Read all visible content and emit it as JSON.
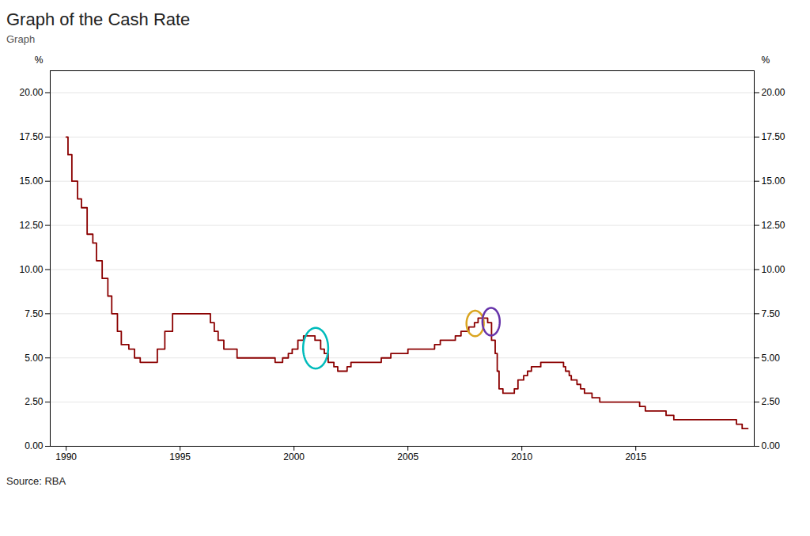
{
  "chart_data": {
    "type": "step",
    "title": "Graph of the Cash Rate",
    "subtitle": "Graph",
    "ylabel": "%",
    "y2label": "%",
    "caption": "Source: RBA",
    "color": "#8B0000",
    "grid": true,
    "xlim": [
      1989.3,
      2020.2
    ],
    "xticks": [
      1990,
      1995,
      2000,
      2005,
      2010,
      2015
    ],
    "ylim": [
      0.0,
      21.25
    ],
    "yticks": [
      {
        "value": 0.0,
        "label": "0.00"
      },
      {
        "value": 2.5,
        "label": "2.50"
      },
      {
        "value": 5.0,
        "label": "5.00"
      },
      {
        "value": 7.5,
        "label": "7.50"
      },
      {
        "value": 10.0,
        "label": "10.00"
      },
      {
        "value": 12.5,
        "label": "12.50"
      },
      {
        "value": 15.0,
        "label": "15.00"
      },
      {
        "value": 17.5,
        "label": "17.50"
      },
      {
        "value": 20.0,
        "label": "20.00"
      }
    ],
    "y2lim": [
      0.0,
      21.25
    ],
    "y2ticks": [
      {
        "value": 0.0,
        "label": "0.00"
      },
      {
        "value": 2.5,
        "label": "2.50"
      },
      {
        "value": 5.0,
        "label": "5.00"
      },
      {
        "value": 7.5,
        "label": "7.50"
      },
      {
        "value": 10.0,
        "label": "10.00"
      },
      {
        "value": 12.5,
        "label": "12.50"
      },
      {
        "value": 15.0,
        "label": "15.00"
      },
      {
        "value": 17.5,
        "label": "17.50"
      },
      {
        "value": 20.0,
        "label": "20.00"
      }
    ],
    "x": [
      1990.0,
      1990.08,
      1990.25,
      1990.5,
      1990.67,
      1990.92,
      1991.17,
      1991.33,
      1991.58,
      1991.83,
      1992.0,
      1992.25,
      1992.42,
      1992.75,
      1993.0,
      1993.25,
      1993.75,
      1994.0,
      1994.33,
      1994.67,
      1995.0,
      1996.17,
      1996.33,
      1996.5,
      1996.67,
      1996.92,
      1997.5,
      1998.0,
      1999.17,
      1999.5,
      1999.75,
      1999.92,
      2000.17,
      2000.42,
      2000.75,
      2000.92,
      2001.17,
      2001.33,
      2001.5,
      2001.75,
      2001.92,
      2002.33,
      2002.5,
      2002.83,
      2003.58,
      2003.83,
      2004.25,
      2004.67,
      2005.0,
      2005.83,
      2006.17,
      2006.42,
      2006.92,
      2007.08,
      2007.33,
      2007.67,
      2007.92,
      2008.08,
      2008.33,
      2008.5,
      2008.67,
      2008.83,
      2008.92,
      2009.0,
      2009.17,
      2009.42,
      2009.67,
      2009.83,
      2009.92,
      2010.08,
      2010.25,
      2010.42,
      2010.58,
      2010.83,
      2011.0,
      2011.75,
      2011.83,
      2011.92,
      2012.08,
      2012.17,
      2012.42,
      2012.58,
      2012.75,
      2013.08,
      2013.42,
      2015.17,
      2015.42,
      2016.33,
      2016.67,
      2019.42,
      2019.67,
      2019.92
    ],
    "values": [
      17.5,
      16.5,
      15.0,
      14.0,
      13.5,
      12.0,
      11.5,
      10.5,
      9.5,
      8.5,
      7.5,
      6.5,
      5.75,
      5.5,
      5.0,
      4.75,
      4.75,
      5.5,
      6.5,
      7.5,
      7.5,
      7.5,
      7.0,
      6.5,
      6.0,
      5.5,
      5.0,
      5.0,
      4.75,
      5.0,
      5.25,
      5.5,
      6.0,
      6.25,
      6.25,
      6.0,
      5.5,
      5.25,
      4.75,
      4.5,
      4.25,
      4.5,
      4.75,
      4.75,
      4.75,
      5.0,
      5.25,
      5.25,
      5.5,
      5.5,
      5.75,
      6.0,
      6.0,
      6.25,
      6.5,
      6.75,
      7.0,
      7.25,
      7.25,
      7.0,
      6.0,
      5.25,
      4.25,
      3.25,
      3.0,
      3.0,
      3.25,
      3.75,
      3.75,
      4.0,
      4.25,
      4.5,
      4.5,
      4.75,
      4.75,
      4.75,
      4.5,
      4.25,
      4.0,
      3.75,
      3.5,
      3.25,
      3.0,
      2.75,
      2.5,
      2.25,
      2.0,
      1.75,
      1.5,
      1.25,
      1.0,
      1.0
    ],
    "ellipses": [
      {
        "cx": 2000.95,
        "cy": 5.55,
        "rx": 0.55,
        "ry": 1.15,
        "color": "#00BBBB"
      },
      {
        "cx": 2007.95,
        "cy": 6.95,
        "rx": 0.38,
        "ry": 0.72,
        "color": "#DAA520"
      },
      {
        "cx": 2008.65,
        "cy": 7.05,
        "rx": 0.38,
        "ry": 0.78,
        "color": "#6633AA"
      }
    ]
  }
}
